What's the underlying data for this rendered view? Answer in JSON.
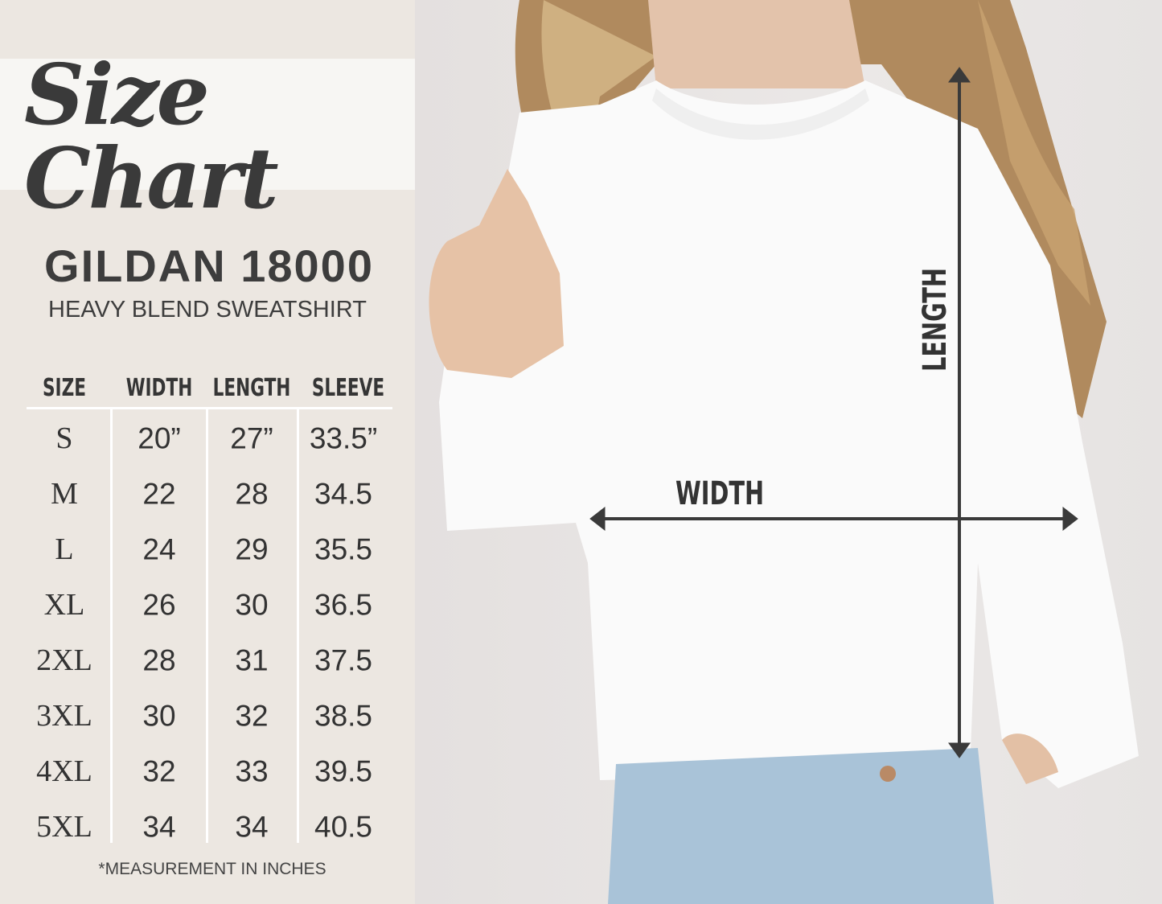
{
  "banner": {
    "title": "Size Chart"
  },
  "product": {
    "name": "GILDAN 18000",
    "description": "HEAVY BLEND SWEATSHIRT"
  },
  "table": {
    "headers": [
      "SIZE",
      "WIDTH",
      "LENGTH",
      "SLEEVE"
    ],
    "rows": [
      [
        "S",
        "20”",
        "27”",
        "33.5”"
      ],
      [
        "M",
        "22",
        "28",
        "34.5"
      ],
      [
        "L",
        "24",
        "29",
        "35.5"
      ],
      [
        "XL",
        "26",
        "30",
        "36.5"
      ],
      [
        "2XL",
        "28",
        "31",
        "37.5"
      ],
      [
        "3XL",
        "30",
        "32",
        "38.5"
      ],
      [
        "4XL",
        "32",
        "33",
        "39.5"
      ],
      [
        "5XL",
        "34",
        "34",
        "40.5"
      ]
    ]
  },
  "note": "*MEASUREMENT IN INCHES",
  "photo": {
    "width_label": "WIDTH",
    "length_label": "LENGTH"
  },
  "colors": {
    "panel": "#ece7e1",
    "text": "#3d3d3d",
    "arrow": "#3a3a3a",
    "sweatshirt": "#fbfbfb",
    "jeans": "#a9c3d8"
  }
}
